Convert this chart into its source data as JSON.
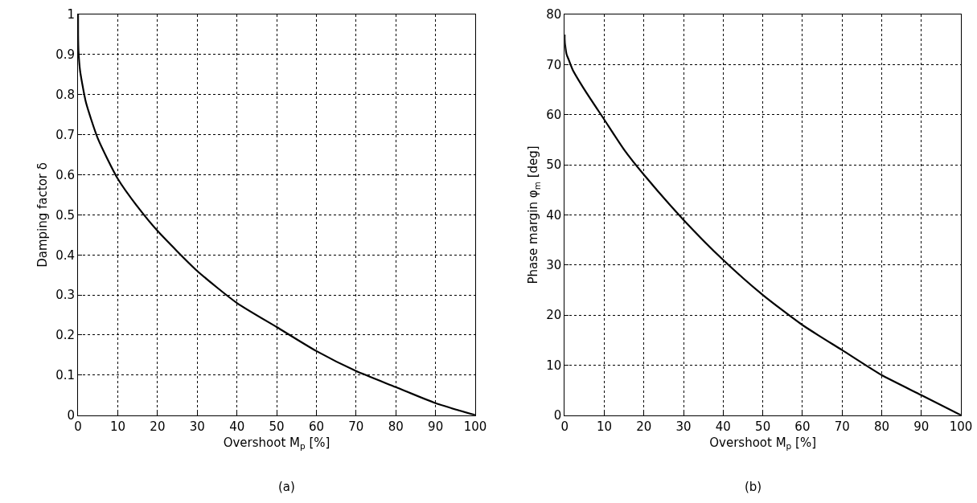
{
  "chart_data": [
    {
      "type": "line",
      "xlabel": "Overshoot M$_{p}$ [%]",
      "ylabel": "Damping factor δ",
      "annotations": [
        "(a)"
      ],
      "x": [
        0,
        0.01,
        0.1,
        0.5,
        1,
        2,
        5,
        10,
        15,
        20,
        30,
        40,
        50,
        60,
        70,
        80,
        90,
        100
      ],
      "series": [
        {
          "color": "#000000",
          "values": [
            1,
            0.95,
            0.91,
            0.86,
            0.83,
            0.78,
            0.69,
            0.59,
            0.52,
            0.46,
            0.36,
            0.28,
            0.22,
            0.16,
            0.11,
            0.07,
            0.03,
            0
          ]
        }
      ],
      "xlim": [
        0,
        100
      ],
      "xticks": [
        0,
        10,
        20,
        30,
        40,
        50,
        60,
        70,
        80,
        90,
        100
      ],
      "ylim": [
        0,
        1
      ],
      "yticks": [
        0,
        0.1,
        0.2,
        0.3,
        0.4,
        0.5,
        0.6,
        0.7,
        0.8,
        0.9,
        1
      ],
      "grid": true,
      "marker": "none",
      "line_style": "solid"
    },
    {
      "type": "line",
      "xlabel": "Overshoot M$_{p}$ [%]",
      "ylabel": "Phase margin φ$_{m}$ [deg]",
      "annotations": [
        "(b)"
      ],
      "x": [
        0,
        0.01,
        0.1,
        0.5,
        1,
        2,
        5,
        10,
        15,
        20,
        30,
        40,
        50,
        60,
        70,
        80,
        90,
        100
      ],
      "series": [
        {
          "color": "#000000",
          "values": [
            76,
            75,
            74,
            72,
            71,
            69,
            65,
            59,
            53,
            48,
            39,
            31,
            24,
            18,
            13,
            8,
            4,
            0
          ]
        }
      ],
      "xlim": [
        0,
        100
      ],
      "xticks": [
        0,
        10,
        20,
        30,
        40,
        50,
        60,
        70,
        80,
        90,
        100
      ],
      "ylim": [
        0,
        80
      ],
      "yticks": [
        0,
        10,
        20,
        30,
        40,
        50,
        60,
        70,
        80
      ],
      "grid": true,
      "marker": "none",
      "line_style": "solid"
    }
  ]
}
